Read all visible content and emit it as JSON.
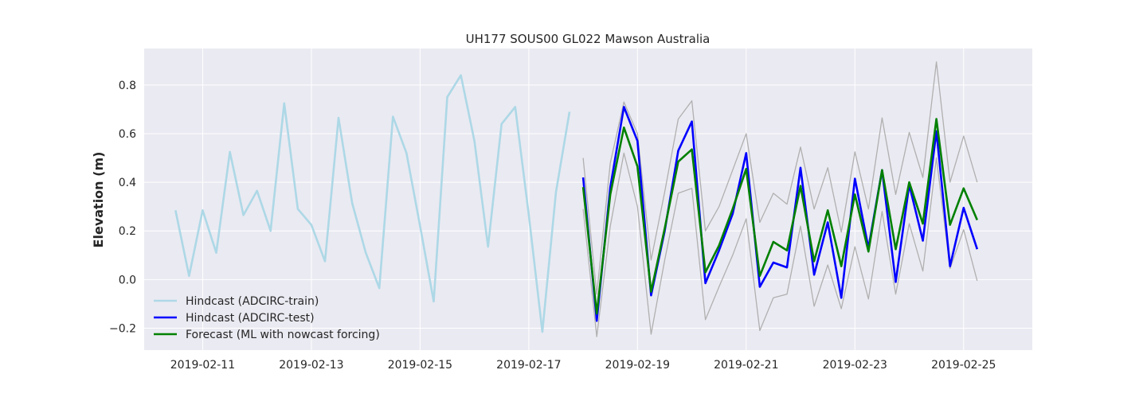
{
  "chart_data": {
    "type": "line",
    "title": "UH177 SOUS00 GL022 Mawson Australia",
    "xlabel": "",
    "ylabel": "Elevation (m)",
    "x_ticks": [
      "2019-02-11",
      "2019-02-13",
      "2019-02-15",
      "2019-02-17",
      "2019-02-19",
      "2019-02-21",
      "2019-02-23",
      "2019-02-25"
    ],
    "y_ticks": [
      "−0.2",
      "0.0",
      "0.2",
      "0.4",
      "0.6",
      "0.8"
    ],
    "xlim": [
      "2019-02-09T22:10",
      "2019-02-26T06:20"
    ],
    "ylim": [
      -0.29,
      0.95
    ],
    "grid": true,
    "legend_position": "lower-left",
    "series": [
      {
        "name": "Hindcast (ADCIRC-train)",
        "color": "#add8e6",
        "x": [
          "2019-02-10T12:00",
          "2019-02-10T18:00",
          "2019-02-11T00:00",
          "2019-02-11T06:00",
          "2019-02-11T12:00",
          "2019-02-11T18:00",
          "2019-02-12T00:00",
          "2019-02-12T06:00",
          "2019-02-12T12:00",
          "2019-02-12T18:00",
          "2019-02-13T00:00",
          "2019-02-13T06:00",
          "2019-02-13T12:00",
          "2019-02-13T18:00",
          "2019-02-14T00:00",
          "2019-02-14T06:00",
          "2019-02-14T12:00",
          "2019-02-14T18:00",
          "2019-02-15T00:00",
          "2019-02-15T06:00",
          "2019-02-15T12:00",
          "2019-02-15T18:00",
          "2019-02-16T00:00",
          "2019-02-16T06:00",
          "2019-02-16T12:00",
          "2019-02-16T18:00",
          "2019-02-17T00:00",
          "2019-02-17T06:00",
          "2019-02-17T12:00",
          "2019-02-17T18:00"
        ],
        "y": [
          0.285,
          0.015,
          0.285,
          0.11,
          0.525,
          0.265,
          0.365,
          0.2,
          0.725,
          0.29,
          0.225,
          0.075,
          0.665,
          0.315,
          0.11,
          -0.035,
          0.67,
          0.52,
          0.22,
          -0.09,
          0.75,
          0.84,
          0.57,
          0.135,
          0.64,
          0.71,
          0.265,
          -0.215,
          0.36,
          0.69
        ]
      },
      {
        "name": "Hindcast (ADCIRC-test)",
        "color": "#0000ff",
        "x": [
          "2019-02-18T00:00",
          "2019-02-18T06:00",
          "2019-02-18T12:00",
          "2019-02-18T18:00",
          "2019-02-19T00:00",
          "2019-02-19T06:00",
          "2019-02-19T12:00",
          "2019-02-19T18:00",
          "2019-02-20T00:00",
          "2019-02-20T06:00",
          "2019-02-20T12:00",
          "2019-02-20T18:00",
          "2019-02-21T00:00",
          "2019-02-21T06:00",
          "2019-02-21T12:00",
          "2019-02-21T18:00",
          "2019-02-22T00:00",
          "2019-02-22T06:00",
          "2019-02-22T12:00",
          "2019-02-22T18:00",
          "2019-02-23T00:00",
          "2019-02-23T06:00",
          "2019-02-23T12:00",
          "2019-02-23T18:00",
          "2019-02-24T00:00",
          "2019-02-24T06:00",
          "2019-02-24T12:00",
          "2019-02-24T18:00",
          "2019-02-25T00:00",
          "2019-02-25T06:00"
        ],
        "y": [
          0.42,
          -0.17,
          0.38,
          0.71,
          0.57,
          -0.065,
          0.2,
          0.53,
          0.65,
          -0.015,
          0.12,
          0.27,
          0.52,
          -0.03,
          0.07,
          0.05,
          0.46,
          0.02,
          0.235,
          -0.075,
          0.415,
          0.13,
          0.45,
          -0.01,
          0.39,
          0.16,
          0.61,
          0.055,
          0.295,
          0.125
        ]
      },
      {
        "name": "Forecast (ML with nowcast forcing)",
        "color": "#008000",
        "x": [
          "2019-02-18T00:00",
          "2019-02-18T06:00",
          "2019-02-18T12:00",
          "2019-02-18T18:00",
          "2019-02-19T00:00",
          "2019-02-19T06:00",
          "2019-02-19T12:00",
          "2019-02-19T18:00",
          "2019-02-20T00:00",
          "2019-02-20T06:00",
          "2019-02-20T12:00",
          "2019-02-20T18:00",
          "2019-02-21T00:00",
          "2019-02-21T06:00",
          "2019-02-21T12:00",
          "2019-02-21T18:00",
          "2019-02-22T00:00",
          "2019-02-22T06:00",
          "2019-02-22T12:00",
          "2019-02-22T18:00",
          "2019-02-23T00:00",
          "2019-02-23T06:00",
          "2019-02-23T12:00",
          "2019-02-23T18:00",
          "2019-02-24T00:00",
          "2019-02-24T06:00",
          "2019-02-24T12:00",
          "2019-02-24T18:00",
          "2019-02-25T00:00",
          "2019-02-25T06:00"
        ],
        "y": [
          0.38,
          -0.14,
          0.35,
          0.625,
          0.465,
          -0.05,
          0.21,
          0.485,
          0.535,
          0.03,
          0.14,
          0.29,
          0.455,
          0.015,
          0.155,
          0.12,
          0.385,
          0.075,
          0.285,
          0.055,
          0.35,
          0.115,
          0.45,
          0.125,
          0.4,
          0.23,
          0.66,
          0.225,
          0.375,
          0.245
        ]
      },
      {
        "color": "#b0b0b0",
        "x": [
          "2019-02-18T00:00",
          "2019-02-18T06:00",
          "2019-02-18T12:00",
          "2019-02-18T18:00",
          "2019-02-19T00:00",
          "2019-02-19T06:00",
          "2019-02-19T12:00",
          "2019-02-19T18:00",
          "2019-02-20T00:00",
          "2019-02-20T06:00",
          "2019-02-20T12:00",
          "2019-02-20T18:00",
          "2019-02-21T00:00",
          "2019-02-21T06:00",
          "2019-02-21T12:00",
          "2019-02-21T18:00",
          "2019-02-22T00:00",
          "2019-02-22T06:00",
          "2019-02-22T12:00",
          "2019-02-22T18:00",
          "2019-02-23T00:00",
          "2019-02-23T06:00",
          "2019-02-23T12:00",
          "2019-02-23T18:00",
          "2019-02-24T00:00",
          "2019-02-24T06:00",
          "2019-02-24T12:00",
          "2019-02-24T18:00",
          "2019-02-25T00:00",
          "2019-02-25T06:00"
        ],
        "y": [
          0.5,
          -0.06,
          0.48,
          0.73,
          0.6,
          0.08,
          0.36,
          0.66,
          0.735,
          0.2,
          0.3,
          0.45,
          0.6,
          0.235,
          0.355,
          0.31,
          0.545,
          0.29,
          0.46,
          0.195,
          0.525,
          0.29,
          0.665,
          0.35,
          0.605,
          0.42,
          0.895,
          0.4,
          0.59,
          0.4
        ]
      },
      {
        "color": "#b0b0b0",
        "x": [
          "2019-02-18T00:00",
          "2019-02-18T06:00",
          "2019-02-18T12:00",
          "2019-02-18T18:00",
          "2019-02-19T00:00",
          "2019-02-19T06:00",
          "2019-02-19T12:00",
          "2019-02-19T18:00",
          "2019-02-20T00:00",
          "2019-02-20T06:00",
          "2019-02-20T12:00",
          "2019-02-20T18:00",
          "2019-02-21T00:00",
          "2019-02-21T06:00",
          "2019-02-21T12:00",
          "2019-02-21T18:00",
          "2019-02-22T00:00",
          "2019-02-22T06:00",
          "2019-02-22T12:00",
          "2019-02-22T18:00",
          "2019-02-23T00:00",
          "2019-02-23T06:00",
          "2019-02-23T12:00",
          "2019-02-23T18:00",
          "2019-02-24T00:00",
          "2019-02-24T06:00",
          "2019-02-24T12:00",
          "2019-02-24T18:00",
          "2019-02-25T00:00",
          "2019-02-25T06:00"
        ],
        "y": [
          0.29,
          -0.235,
          0.22,
          0.52,
          0.3,
          -0.225,
          0.08,
          0.355,
          0.375,
          -0.165,
          -0.03,
          0.1,
          0.25,
          -0.21,
          -0.075,
          -0.06,
          0.22,
          -0.11,
          0.06,
          -0.12,
          0.135,
          -0.08,
          0.28,
          -0.06,
          0.23,
          0.035,
          0.5,
          0.045,
          0.205,
          -0.005
        ]
      }
    ]
  }
}
